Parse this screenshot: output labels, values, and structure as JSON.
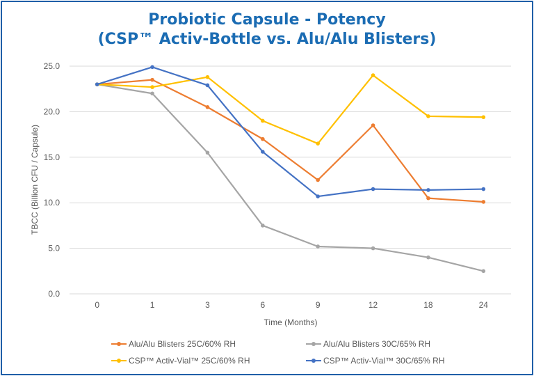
{
  "chart_data": {
    "type": "line",
    "title": [
      "Probiotic Capsule - Potency",
      "(CSP™ Activ-Bottle vs. Alu/Alu Blisters)"
    ],
    "xlabel": "Time (Months)",
    "ylabel": "TBCC (Billion CFU / Capsule)",
    "categories": [
      "0",
      "1",
      "3",
      "6",
      "9",
      "12",
      "18",
      "24"
    ],
    "ylim": [
      0,
      25
    ],
    "yticks": [
      "0.0",
      "5.0",
      "10.0",
      "15.0",
      "20.0",
      "25.0"
    ],
    "grid": true,
    "legend_position": "bottom",
    "series": [
      {
        "name": "Alu/Alu Blisters 25C/60% RH",
        "color": "#ed7d31",
        "values": [
          23.0,
          23.5,
          20.5,
          17.0,
          12.5,
          18.5,
          10.5,
          10.1
        ]
      },
      {
        "name": "Alu/Alu Blisters 30C/65% RH",
        "color": "#a5a5a5",
        "values": [
          23.0,
          22.0,
          15.5,
          7.5,
          5.2,
          5.0,
          4.0,
          2.5
        ]
      },
      {
        "name": "CSP™ Activ-Vial™ 25C/60% RH",
        "color": "#ffc000",
        "values": [
          23.0,
          22.7,
          23.8,
          19.0,
          16.5,
          24.0,
          19.5,
          19.4
        ]
      },
      {
        "name": "CSP™ Activ-Vial™ 30C/65% RH",
        "color": "#4472c4",
        "values": [
          23.0,
          24.9,
          22.9,
          15.6,
          10.7,
          11.5,
          11.4,
          11.5
        ]
      }
    ]
  }
}
